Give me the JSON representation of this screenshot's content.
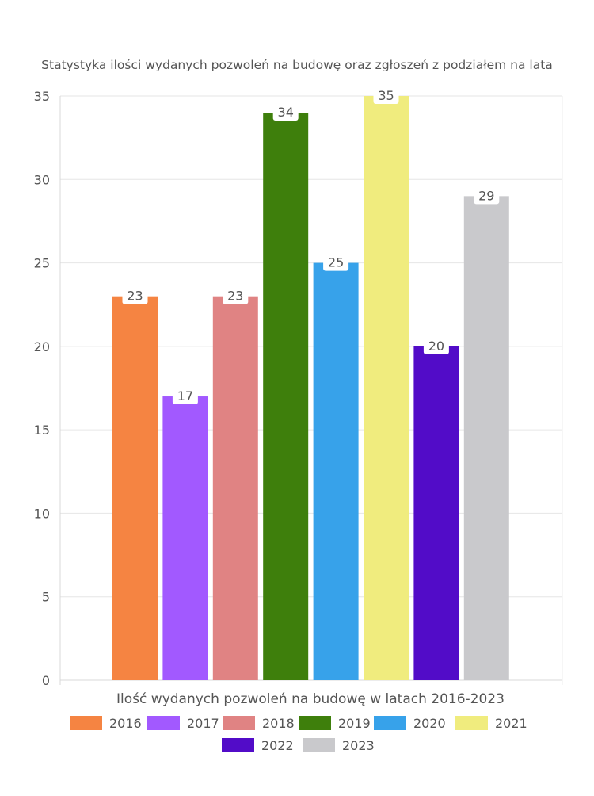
{
  "chart_data": {
    "type": "bar",
    "title": "Statystyka ilości wydanych pozwoleń na budowę oraz zgłoszeń z podziałem na lata",
    "xlabel": "Ilość wydanych pozwoleń na budowę w latach 2016-2023",
    "ylabel": "",
    "ylim": [
      0,
      35
    ],
    "yticks": [
      0,
      5,
      10,
      15,
      20,
      25,
      30,
      35
    ],
    "grid": true,
    "legend_position": "bottom",
    "series": [
      {
        "name": "2016",
        "value": 23,
        "color": "#f58442"
      },
      {
        "name": "2017",
        "value": 17,
        "color": "#a259ff"
      },
      {
        "name": "2018",
        "value": 23,
        "color": "#e08383"
      },
      {
        "name": "2019",
        "value": 34,
        "color": "#3e7f0c"
      },
      {
        "name": "2020",
        "value": 25,
        "color": "#37a2ea"
      },
      {
        "name": "2021",
        "value": 35,
        "color": "#f0ec7e"
      },
      {
        "name": "2022",
        "value": 20,
        "color": "#520cc8"
      },
      {
        "name": "2023",
        "value": 29,
        "color": "#c9c9cc"
      }
    ]
  }
}
